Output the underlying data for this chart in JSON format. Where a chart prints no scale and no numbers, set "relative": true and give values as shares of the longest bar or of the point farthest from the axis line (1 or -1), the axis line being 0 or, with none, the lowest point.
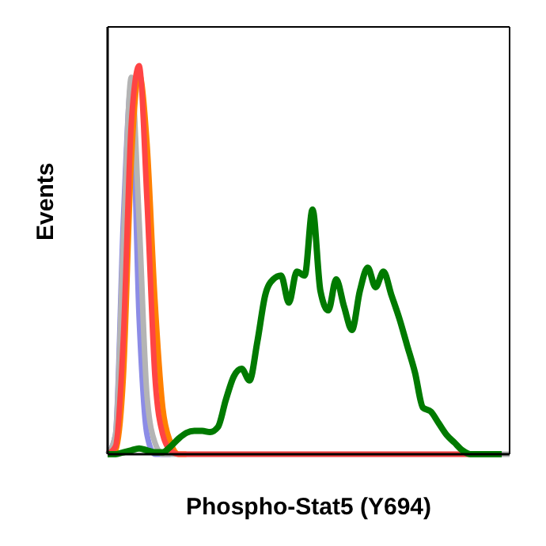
{
  "chart_data": {
    "type": "line",
    "xlabel": "Phospho-Stat5 (Y694)",
    "ylabel": "Events",
    "relative": true,
    "tick_labels": false,
    "categories": [
      null,
      null,
      null,
      null,
      null,
      null,
      null,
      null,
      null,
      null,
      null,
      null,
      null,
      null,
      null,
      null,
      null,
      null,
      null,
      null,
      null,
      null,
      null,
      null,
      null,
      null,
      null,
      null,
      null,
      null,
      null,
      null,
      null,
      null,
      null,
      null,
      null,
      null,
      null,
      null,
      null,
      null,
      null,
      null,
      null,
      null,
      null,
      null,
      null,
      null,
      null,
      null
    ],
    "series": [
      {
        "color": "#8c8ce6",
        "values": [
          0,
          0.05,
          0.6,
          0.95,
          0.35,
          0.05,
          0,
          0,
          0,
          null,
          null,
          null,
          null,
          null,
          null,
          null,
          null,
          null,
          null,
          null,
          null,
          null,
          null,
          null,
          null,
          null,
          null,
          null,
          null,
          null,
          null,
          null,
          null,
          null,
          null,
          null,
          null,
          null,
          null,
          null,
          null,
          null,
          null,
          null,
          null,
          null,
          null,
          null,
          null,
          null,
          null,
          null
        ]
      },
      {
        "color": "#b4b4b4",
        "values": [
          0,
          0.05,
          0.55,
          0.97,
          0.6,
          0.15,
          0.03,
          0,
          0,
          0,
          0,
          0,
          0,
          0,
          0,
          0,
          0,
          0,
          0,
          0,
          0,
          0,
          0,
          0,
          0,
          0,
          0,
          0,
          0,
          0,
          0,
          0,
          0,
          0,
          0,
          0,
          0,
          0,
          0,
          0,
          0,
          0,
          0,
          0,
          0,
          0,
          0,
          0,
          0,
          0,
          0,
          0
        ]
      },
      {
        "color": "#ff8000",
        "values": [
          0,
          0.01,
          0.2,
          0.75,
          0.98,
          0.8,
          0.4,
          0.12,
          0.03,
          0,
          0,
          null,
          null,
          null,
          null,
          null,
          null,
          null,
          null,
          null,
          null,
          null,
          null,
          null,
          null,
          null,
          null,
          null,
          null,
          null,
          null,
          null,
          null,
          null,
          null,
          null,
          null,
          null,
          null,
          null,
          null,
          null,
          null,
          null,
          null,
          null,
          null,
          null,
          null,
          null,
          null,
          null
        ]
      },
      {
        "color": "#ff4444",
        "values": [
          0,
          0.02,
          0.3,
          0.85,
          1,
          0.65,
          0.2,
          0.05,
          0.01,
          0,
          0,
          0,
          0,
          0,
          0,
          0,
          0,
          0,
          0,
          0,
          0,
          0,
          0,
          0,
          0,
          0,
          0,
          0,
          0,
          0,
          0,
          0,
          0,
          0,
          0,
          0,
          0,
          0,
          0,
          0,
          0,
          0,
          0,
          0,
          0,
          0,
          0,
          0,
          null,
          null,
          null,
          null
        ]
      },
      {
        "color": "#007a00",
        "values": [
          0,
          0,
          0.005,
          0.01,
          0.015,
          0.01,
          0.005,
          0.005,
          0.02,
          0.04,
          0.055,
          0.06,
          0.06,
          0.057,
          0.07,
          0.14,
          0.2,
          0.22,
          0.19,
          0.29,
          0.41,
          0.45,
          0.46,
          0.39,
          0.47,
          0.46,
          0.63,
          0.42,
          0.37,
          0.45,
          0.38,
          0.32,
          0.42,
          0.48,
          0.43,
          0.47,
          0.41,
          0.35,
          0.28,
          0.21,
          0.12,
          0.11,
          0.08,
          0.05,
          0.03,
          0.01,
          0,
          0,
          0,
          0,
          0,
          null
        ]
      }
    ]
  }
}
